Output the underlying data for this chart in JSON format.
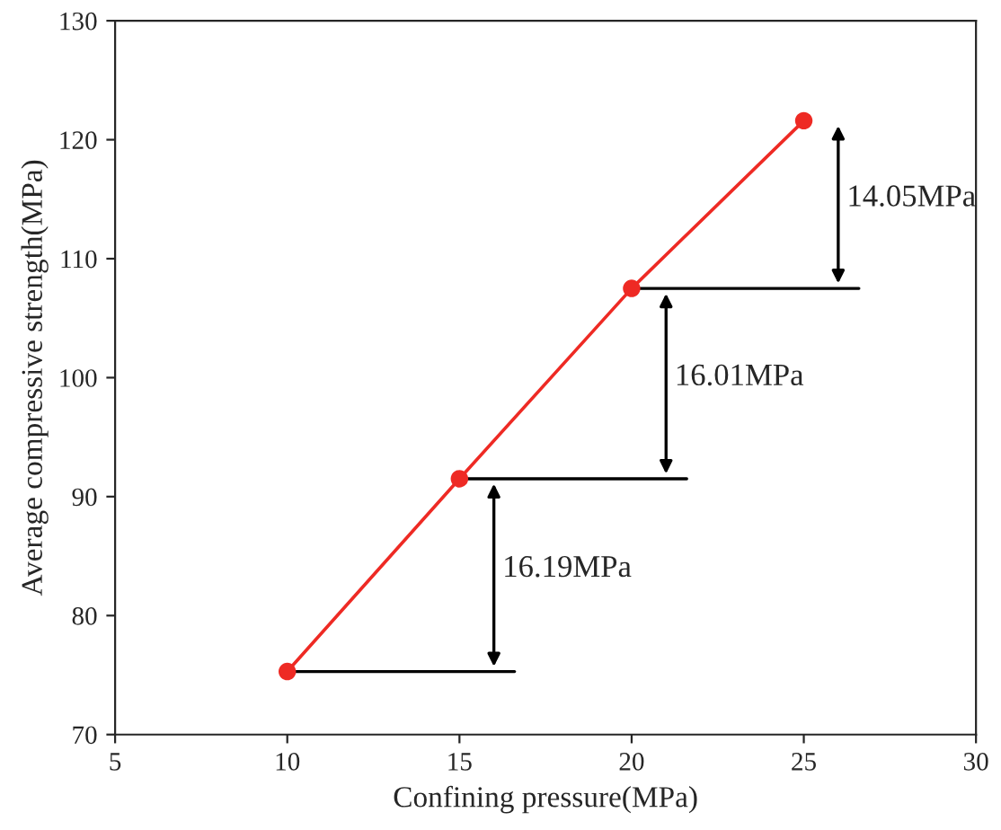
{
  "chart_data": {
    "type": "line",
    "xlabel": "Confining pressure(MPa)",
    "ylabel": "Average compressive strength(MPa)",
    "x": [
      10,
      15,
      20,
      25
    ],
    "series": [
      {
        "color": "#ee2a24",
        "values": [
          75.3,
          91.5,
          107.5,
          121.6
        ]
      }
    ],
    "marker": "circle",
    "line_style": "solid",
    "xlim": [
      5,
      30
    ],
    "xticks": [
      5,
      10,
      15,
      20,
      25,
      30
    ],
    "ylim": [
      70,
      130
    ],
    "yticks": [
      70,
      80,
      90,
      100,
      110,
      120,
      130
    ],
    "grid": false,
    "legend": false,
    "annotations": [
      "16.19MPa",
      "16.01MPa",
      "14.05MPa"
    ]
  }
}
